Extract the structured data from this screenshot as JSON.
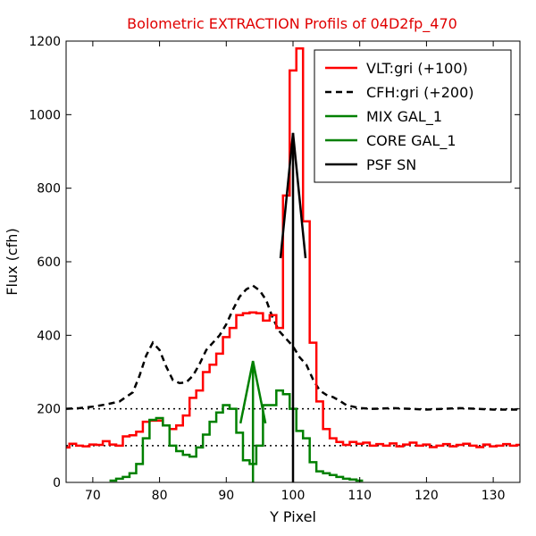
{
  "chart_data": {
    "type": "line",
    "title": "Bolometric EXTRACTION Profils of 04D2fp_470",
    "xlabel": "Y Pixel",
    "ylabel": "Flux (cfh)",
    "xlim": [
      66,
      134
    ],
    "ylim": [
      0,
      1200
    ],
    "xticks": [
      70,
      80,
      90,
      100,
      110,
      120,
      130
    ],
    "yticks": [
      0,
      200,
      400,
      600,
      800,
      1000,
      1200
    ],
    "grid": false,
    "legend_position": "top-right",
    "reference_lines": [
      100,
      200
    ],
    "colors": {
      "title": "#e00000",
      "vlt": "#ff0000",
      "cfh": "#000000",
      "mix": "#008000",
      "core": "#008000",
      "psf": "#000000",
      "ref": "#000000"
    },
    "series": [
      {
        "name": "VLT:gri (+100)",
        "style": "steps",
        "color": "#ff0000",
        "x": [
          66,
          67,
          68,
          69,
          70,
          71,
          72,
          73,
          74,
          75,
          76,
          77,
          78,
          79,
          80,
          81,
          82,
          83,
          84,
          85,
          86,
          87,
          88,
          89,
          90,
          91,
          92,
          93,
          94,
          95,
          96,
          97,
          98,
          99,
          100,
          101,
          102,
          103,
          104,
          105,
          106,
          107,
          108,
          109,
          110,
          111,
          112,
          113,
          114,
          115,
          116,
          117,
          118,
          119,
          120,
          121,
          122,
          123,
          124,
          125,
          126,
          127,
          128,
          129,
          130,
          131,
          132,
          133,
          134
        ],
        "values": [
          95,
          105,
          100,
          98,
          103,
          102,
          112,
          103,
          100,
          125,
          128,
          138,
          165,
          168,
          168,
          155,
          145,
          155,
          182,
          230,
          250,
          300,
          320,
          350,
          395,
          420,
          455,
          460,
          462,
          460,
          440,
          455,
          420,
          780,
          1120,
          1180,
          710,
          380,
          220,
          145,
          120,
          110,
          102,
          110,
          105,
          108,
          100,
          104,
          100,
          106,
          98,
          103,
          108,
          100,
          103,
          96,
          100,
          104,
          98,
          102,
          105,
          100,
          96,
          103,
          98,
          100,
          104,
          100,
          102
        ]
      },
      {
        "name": "CFH:gri (+200)",
        "style": "dashed",
        "color": "#000000",
        "x": [
          66,
          68,
          70,
          72,
          74,
          76,
          77,
          78,
          79,
          80,
          81,
          82,
          83,
          84,
          85,
          86,
          87,
          88,
          89,
          90,
          91,
          92,
          93,
          94,
          95,
          96,
          97,
          98,
          99,
          100,
          101,
          102,
          103,
          104,
          105,
          106,
          107,
          108,
          110,
          112,
          115,
          120,
          125,
          130,
          134
        ],
        "values": [
          200,
          202,
          206,
          212,
          220,
          245,
          290,
          345,
          380,
          360,
          315,
          278,
          270,
          272,
          290,
          322,
          360,
          380,
          400,
          430,
          470,
          505,
          525,
          535,
          522,
          495,
          445,
          410,
          390,
          370,
          340,
          320,
          280,
          250,
          238,
          232,
          222,
          210,
          202,
          200,
          202,
          198,
          202,
          198,
          198
        ]
      },
      {
        "name": "MIX GAL_1",
        "style": "steps",
        "color": "#008000",
        "x": [
          73,
          74,
          75,
          76,
          77,
          78,
          79,
          80,
          81,
          82,
          83,
          84,
          85,
          86,
          87,
          88,
          89,
          90,
          91,
          92,
          93,
          94,
          95,
          96,
          97,
          98,
          99,
          100,
          101,
          102,
          103,
          104,
          105,
          106,
          107,
          108,
          109,
          110
        ],
        "values": [
          5,
          10,
          15,
          25,
          50,
          120,
          170,
          175,
          155,
          100,
          85,
          75,
          70,
          95,
          130,
          165,
          190,
          210,
          200,
          135,
          60,
          50,
          100,
          210,
          210,
          250,
          240,
          200,
          140,
          120,
          55,
          30,
          25,
          20,
          15,
          10,
          8,
          5
        ]
      },
      {
        "name": "CORE GAL_1",
        "style": "arrow",
        "color": "#008000",
        "x": [
          94,
          94
        ],
        "values": [
          0,
          330
        ]
      },
      {
        "name": "PSF SN",
        "style": "arrow",
        "color": "#000000",
        "x": [
          100,
          100
        ],
        "values": [
          0,
          950
        ]
      }
    ]
  }
}
